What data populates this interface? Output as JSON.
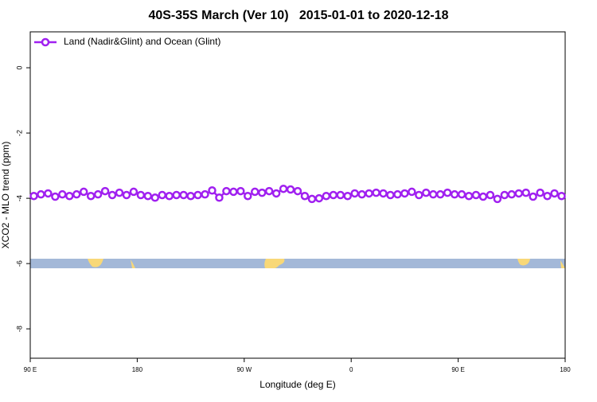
{
  "chart_data": {
    "type": "line",
    "title": "40S-35S March (Ver 10)   2015-01-01 to 2020-12-18",
    "x_label": "Longitude (deg E)",
    "y_label": "XCO2 - MLO trend (ppm)",
    "x": [
      93,
      99,
      105,
      111,
      117,
      123,
      129,
      135,
      141,
      147,
      153,
      159,
      165,
      171,
      177,
      183,
      189,
      195,
      201,
      207,
      213,
      219,
      225,
      231,
      237,
      243,
      249,
      255,
      261,
      267,
      273,
      279,
      285,
      291,
      297,
      303,
      309,
      315,
      321,
      327,
      333,
      339,
      345,
      351,
      357,
      363,
      369,
      375,
      381,
      387,
      393,
      399,
      405,
      411,
      417,
      423,
      429,
      435,
      441,
      447,
      453,
      459,
      465,
      471,
      477,
      483,
      489,
      495,
      501,
      507,
      513,
      519,
      525,
      531,
      537
    ],
    "series": [
      {
        "name": "Land (Nadir&Glint) and Ocean (Glint)",
        "color": "#a020f0",
        "values": [
          -3.93,
          -3.88,
          -3.85,
          -3.95,
          -3.88,
          -3.93,
          -3.88,
          -3.8,
          -3.93,
          -3.88,
          -3.78,
          -3.9,
          -3.83,
          -3.9,
          -3.8,
          -3.9,
          -3.93,
          -3.98,
          -3.9,
          -3.93,
          -3.9,
          -3.9,
          -3.93,
          -3.9,
          -3.88,
          -3.76,
          -3.98,
          -3.78,
          -3.8,
          -3.78,
          -3.93,
          -3.8,
          -3.83,
          -3.78,
          -3.85,
          -3.71,
          -3.73,
          -3.78,
          -3.93,
          -4.02,
          -4.0,
          -3.93,
          -3.9,
          -3.9,
          -3.93,
          -3.85,
          -3.88,
          -3.85,
          -3.83,
          -3.85,
          -3.9,
          -3.88,
          -3.85,
          -3.8,
          -3.9,
          -3.83,
          -3.88,
          -3.88,
          -3.83,
          -3.88,
          -3.88,
          -3.93,
          -3.9,
          -3.95,
          -3.9,
          -4.02,
          -3.9,
          -3.88,
          -3.85,
          -3.83,
          -3.95,
          -3.83,
          -3.93,
          -3.85,
          -3.93
        ]
      }
    ],
    "xlim": [
      90,
      540
    ],
    "xticks": [
      {
        "value": 90,
        "label": "90 E"
      },
      {
        "value": 180,
        "label": "180"
      },
      {
        "value": 270,
        "label": "90 W"
      },
      {
        "value": 360,
        "label": "0"
      },
      {
        "value": 450,
        "label": "90 E"
      },
      {
        "value": 540,
        "label": "180"
      }
    ],
    "ylim": [
      -8.9,
      1.1
    ],
    "yticks": [
      0,
      -2,
      -4,
      -6,
      -8
    ],
    "legend": "top-left"
  }
}
